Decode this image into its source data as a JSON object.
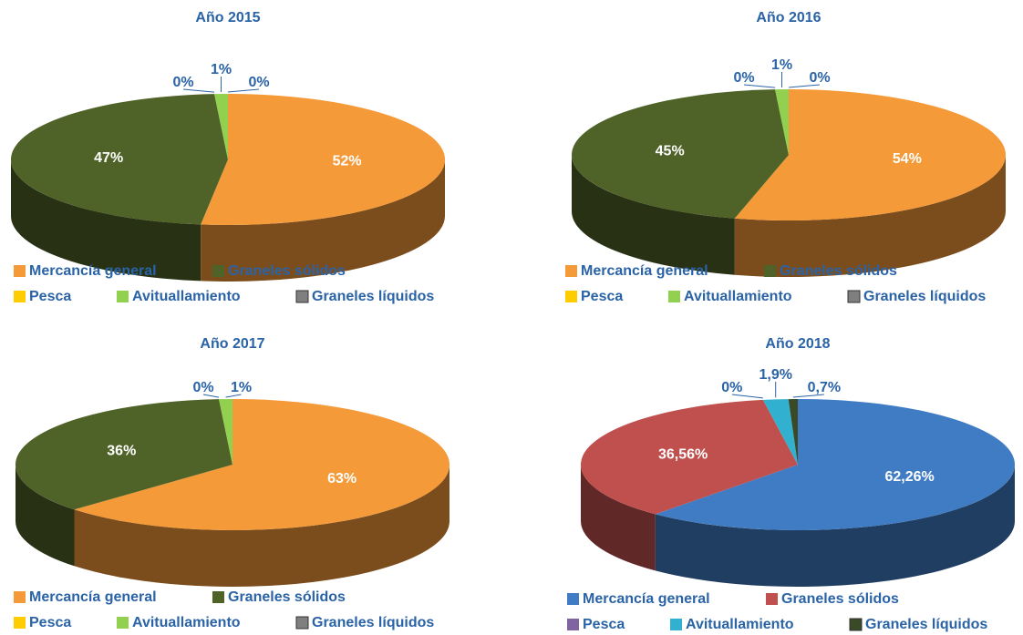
{
  "chart_data": [
    {
      "type": "pie",
      "title": "Año 2015",
      "categories": [
        "Mercancía general",
        "Graneles sólidos",
        "Pesca",
        "Avituallamiento",
        "Graneles líquidos"
      ],
      "values": [
        52,
        47,
        0,
        1,
        0
      ],
      "value_labels": [
        "52%",
        "47%",
        "0%",
        "1%",
        "0%"
      ],
      "colors": [
        "#f59a38",
        "#4f6228",
        "#ffcc00",
        "#92d050",
        "#7f7f7f"
      ]
    },
    {
      "type": "pie",
      "title": "Año 2016",
      "categories": [
        "Mercancía general",
        "Graneles sólidos",
        "Pesca",
        "Avituallamiento",
        "Graneles líquidos"
      ],
      "values": [
        54,
        45,
        0,
        1,
        0
      ],
      "value_labels": [
        "54%",
        "45%",
        "0%",
        "1%",
        "0%"
      ],
      "colors": [
        "#f59a38",
        "#4f6228",
        "#ffcc00",
        "#92d050",
        "#7f7f7f"
      ]
    },
    {
      "type": "pie",
      "title": "Año 2017",
      "categories": [
        "Mercancía general",
        "Graneles sólidos",
        "Pesca",
        "Avituallamiento",
        "Graneles líquidos"
      ],
      "values": [
        63,
        36,
        0,
        1,
        0
      ],
      "value_labels": [
        "63%",
        "36%",
        "0%",
        "1%",
        null
      ],
      "colors": [
        "#f59a38",
        "#4f6228",
        "#ffcc00",
        "#92d050",
        "#7f7f7f"
      ]
    },
    {
      "type": "pie",
      "title": "Año 2018",
      "categories": [
        "Mercancía general",
        "Graneles sólidos",
        "Pesca",
        "Avituallamiento",
        "Graneles líquidos"
      ],
      "values": [
        62.26,
        36.56,
        0,
        1.9,
        0.7
      ],
      "value_labels": [
        "62,26%",
        "36,56%",
        "0%",
        "1,9%",
        "0,7%"
      ],
      "colors": [
        "#3f7cc4",
        "#c0504d",
        "#8064a2",
        "#31b0cf",
        "#3b4a26"
      ]
    }
  ]
}
